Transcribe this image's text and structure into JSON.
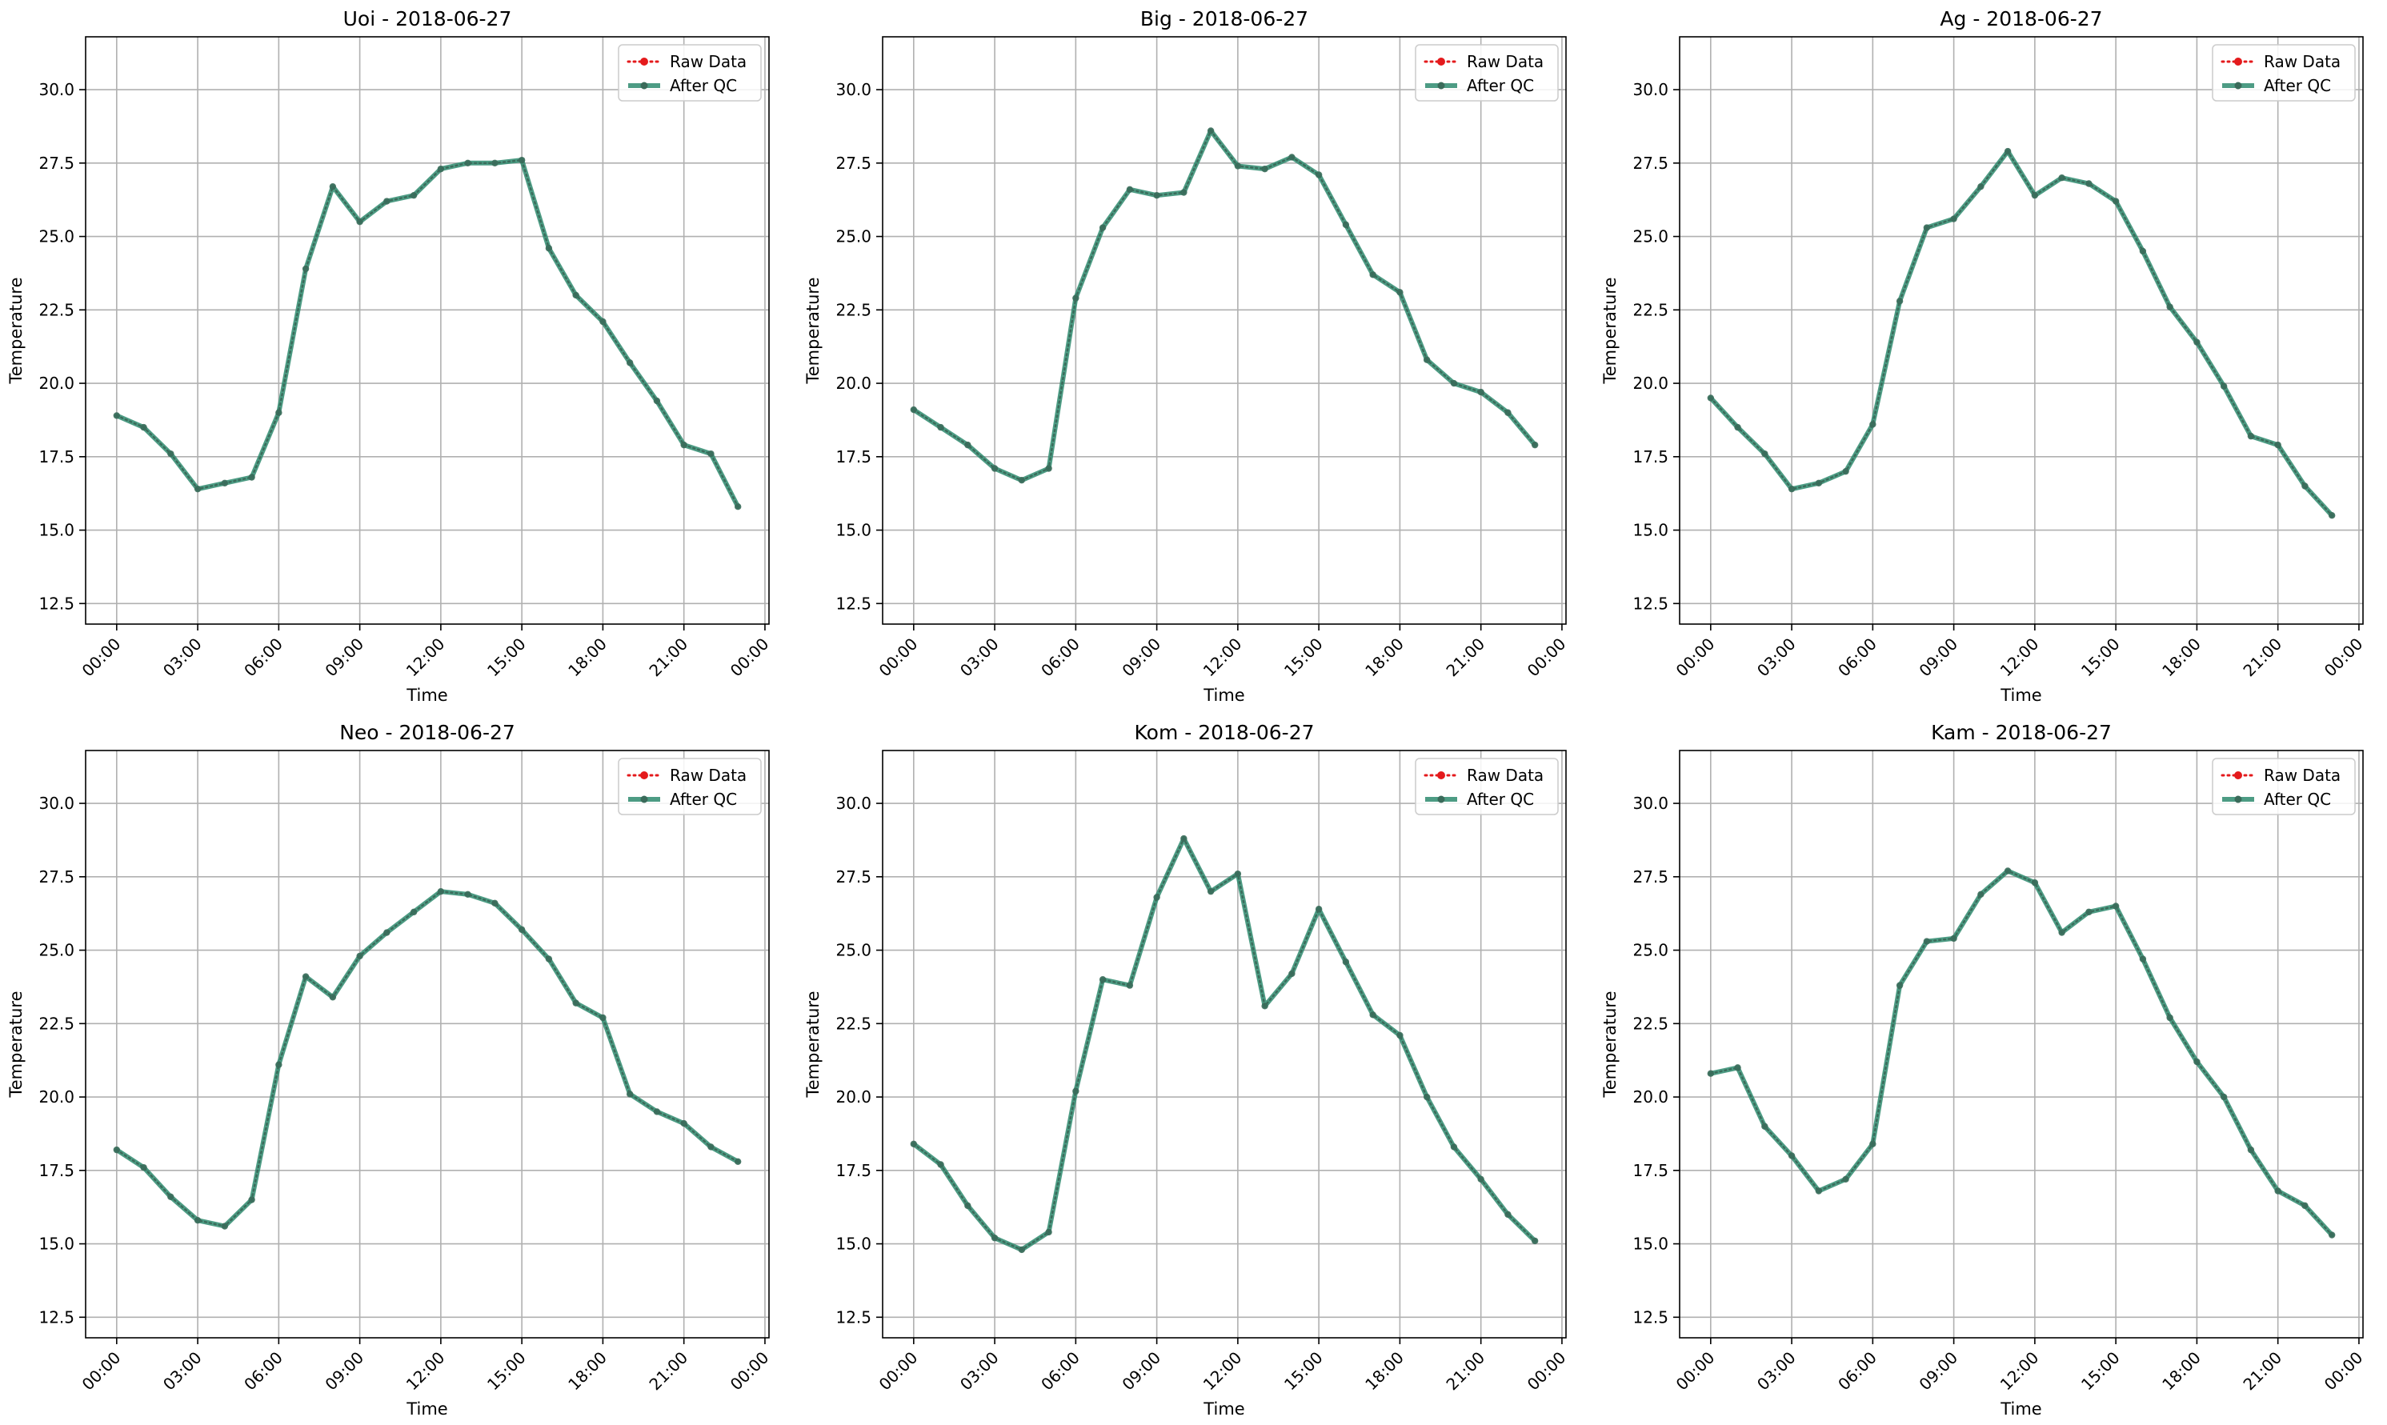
{
  "figure": {
    "x_tick_labels": [
      "00:00",
      "03:00",
      "06:00",
      "09:00",
      "12:00",
      "15:00",
      "18:00",
      "21:00",
      "00:00"
    ],
    "y_tick_labels": [
      "12.5",
      "15.0",
      "17.5",
      "20.0",
      "22.5",
      "25.0",
      "27.5",
      "30.0"
    ],
    "legend": {
      "raw": "Raw Data",
      "qc": "After QC"
    },
    "colors": {
      "raw": "#e41a1c",
      "qc": "#2e8b6e",
      "marker": "#3a6b5a",
      "grid": "#b0b0b0"
    }
  },
  "chart_data": [
    {
      "type": "line",
      "title": "Uoi - 2018-06-27",
      "xlabel": "Time",
      "ylabel": "Temperature",
      "ylim": [
        11.8,
        31.8
      ],
      "xlim_hours": [
        -1.15,
        24.15
      ],
      "grid": true,
      "legend_position": "top-right",
      "x_hours": [
        0,
        1,
        2,
        3,
        4,
        5,
        6,
        7,
        8,
        9,
        10,
        11,
        12,
        13,
        14,
        15,
        16,
        17,
        18,
        19,
        20,
        21,
        22,
        23
      ],
      "series": [
        {
          "name": "Raw Data",
          "values": [
            18.9,
            18.5,
            17.6,
            16.4,
            16.6,
            16.8,
            19.0,
            23.9,
            26.7,
            25.5,
            26.2,
            26.4,
            27.3,
            27.5,
            27.5,
            27.6,
            24.6,
            23.0,
            22.1,
            20.7,
            19.4,
            17.9,
            17.6,
            15.8
          ]
        },
        {
          "name": "After QC",
          "values": [
            18.9,
            18.5,
            17.6,
            16.4,
            16.6,
            16.8,
            19.0,
            23.9,
            26.7,
            25.5,
            26.2,
            26.4,
            27.3,
            27.5,
            27.5,
            27.6,
            24.6,
            23.0,
            22.1,
            20.7,
            19.4,
            17.9,
            17.6,
            15.8
          ]
        }
      ]
    },
    {
      "type": "line",
      "title": "Big - 2018-06-27",
      "xlabel": "Time",
      "ylabel": "Temperature",
      "ylim": [
        11.8,
        31.8
      ],
      "xlim_hours": [
        -1.15,
        24.15
      ],
      "grid": true,
      "legend_position": "top-right",
      "x_hours": [
        0,
        1,
        2,
        3,
        4,
        5,
        6,
        7,
        8,
        9,
        10,
        11,
        12,
        13,
        14,
        15,
        16,
        17,
        18,
        19,
        20,
        21,
        22,
        23
      ],
      "series": [
        {
          "name": "Raw Data",
          "values": [
            19.1,
            18.5,
            17.9,
            17.1,
            16.7,
            17.1,
            22.9,
            25.3,
            26.6,
            26.4,
            26.5,
            28.6,
            27.4,
            27.3,
            27.7,
            27.1,
            25.4,
            23.7,
            23.1,
            20.8,
            20.0,
            19.7,
            19.0,
            17.9
          ]
        },
        {
          "name": "After QC",
          "values": [
            19.1,
            18.5,
            17.9,
            17.1,
            16.7,
            17.1,
            22.9,
            25.3,
            26.6,
            26.4,
            26.5,
            28.6,
            27.4,
            27.3,
            27.7,
            27.1,
            25.4,
            23.7,
            23.1,
            20.8,
            20.0,
            19.7,
            19.0,
            17.9
          ]
        }
      ]
    },
    {
      "type": "line",
      "title": "Ag - 2018-06-27",
      "xlabel": "Time",
      "ylabel": "Temperature",
      "ylim": [
        11.8,
        31.8
      ],
      "xlim_hours": [
        -1.15,
        24.15
      ],
      "grid": true,
      "legend_position": "top-right",
      "x_hours": [
        0,
        1,
        2,
        3,
        4,
        5,
        6,
        7,
        8,
        9,
        10,
        11,
        12,
        13,
        14,
        15,
        16,
        17,
        18,
        19,
        20,
        21,
        22,
        23
      ],
      "series": [
        {
          "name": "Raw Data",
          "values": [
            19.5,
            18.5,
            17.6,
            16.4,
            16.6,
            17.0,
            18.6,
            22.8,
            25.3,
            25.6,
            26.7,
            27.9,
            26.4,
            27.0,
            26.8,
            26.2,
            24.5,
            22.6,
            21.4,
            19.9,
            18.2,
            17.9,
            16.5,
            15.5
          ]
        },
        {
          "name": "After QC",
          "values": [
            19.5,
            18.5,
            17.6,
            16.4,
            16.6,
            17.0,
            18.6,
            22.8,
            25.3,
            25.6,
            26.7,
            27.9,
            26.4,
            27.0,
            26.8,
            26.2,
            24.5,
            22.6,
            21.4,
            19.9,
            18.2,
            17.9,
            16.5,
            15.5
          ]
        }
      ]
    },
    {
      "type": "line",
      "title": "Neo - 2018-06-27",
      "xlabel": "Time",
      "ylabel": "Temperature",
      "ylim": [
        11.8,
        31.8
      ],
      "xlim_hours": [
        -1.15,
        24.15
      ],
      "grid": true,
      "legend_position": "top-right",
      "x_hours": [
        0,
        1,
        2,
        3,
        4,
        5,
        6,
        7,
        8,
        9,
        10,
        11,
        12,
        13,
        14,
        15,
        16,
        17,
        18,
        19,
        20,
        21,
        22,
        23
      ],
      "series": [
        {
          "name": "Raw Data",
          "values": [
            18.2,
            17.6,
            16.6,
            15.8,
            15.6,
            16.5,
            21.1,
            24.1,
            23.4,
            24.8,
            25.6,
            26.3,
            27.0,
            26.9,
            26.6,
            25.7,
            24.7,
            23.2,
            22.7,
            20.1,
            19.5,
            19.1,
            18.3,
            17.8
          ]
        },
        {
          "name": "After QC",
          "values": [
            18.2,
            17.6,
            16.6,
            15.8,
            15.6,
            16.5,
            21.1,
            24.1,
            23.4,
            24.8,
            25.6,
            26.3,
            27.0,
            26.9,
            26.6,
            25.7,
            24.7,
            23.2,
            22.7,
            20.1,
            19.5,
            19.1,
            18.3,
            17.8
          ]
        }
      ]
    },
    {
      "type": "line",
      "title": "Kom - 2018-06-27",
      "xlabel": "Time",
      "ylabel": "Temperature",
      "ylim": [
        11.8,
        31.8
      ],
      "xlim_hours": [
        -1.15,
        24.15
      ],
      "grid": true,
      "legend_position": "top-right",
      "x_hours": [
        0,
        1,
        2,
        3,
        4,
        5,
        6,
        7,
        8,
        9,
        10,
        11,
        12,
        13,
        14,
        15,
        16,
        17,
        18,
        19,
        20,
        21,
        22,
        23
      ],
      "series": [
        {
          "name": "Raw Data",
          "values": [
            18.4,
            17.7,
            16.3,
            15.2,
            14.8,
            15.4,
            20.2,
            24.0,
            23.8,
            26.8,
            28.8,
            27.0,
            27.6,
            23.1,
            24.2,
            26.4,
            24.6,
            22.8,
            22.1,
            20.0,
            18.3,
            17.2,
            16.0,
            15.1
          ]
        },
        {
          "name": "After QC",
          "values": [
            18.4,
            17.7,
            16.3,
            15.2,
            14.8,
            15.4,
            20.2,
            24.0,
            23.8,
            26.8,
            28.8,
            27.0,
            27.6,
            23.1,
            24.2,
            26.4,
            24.6,
            22.8,
            22.1,
            20.0,
            18.3,
            17.2,
            16.0,
            15.1
          ]
        }
      ]
    },
    {
      "type": "line",
      "title": "Kam - 2018-06-27",
      "xlabel": "Time",
      "ylabel": "Temperature",
      "ylim": [
        11.8,
        31.8
      ],
      "xlim_hours": [
        -1.15,
        24.15
      ],
      "grid": true,
      "legend_position": "top-right",
      "x_hours": [
        0,
        1,
        2,
        3,
        4,
        5,
        6,
        7,
        8,
        9,
        10,
        11,
        12,
        13,
        14,
        15,
        16,
        17,
        18,
        19,
        20,
        21,
        22,
        23
      ],
      "series": [
        {
          "name": "Raw Data",
          "values": [
            20.8,
            21.0,
            19.0,
            18.0,
            16.8,
            17.2,
            18.4,
            23.8,
            25.3,
            25.4,
            26.9,
            27.7,
            27.3,
            25.6,
            26.3,
            26.5,
            24.7,
            22.7,
            21.2,
            20.0,
            18.2,
            16.8,
            16.3,
            15.3
          ]
        },
        {
          "name": "After QC",
          "values": [
            20.8,
            21.0,
            19.0,
            18.0,
            16.8,
            17.2,
            18.4,
            23.8,
            25.3,
            25.4,
            26.9,
            27.7,
            27.3,
            25.6,
            26.3,
            26.5,
            24.7,
            22.7,
            21.2,
            20.0,
            18.2,
            16.8,
            16.3,
            15.3
          ]
        }
      ]
    }
  ]
}
